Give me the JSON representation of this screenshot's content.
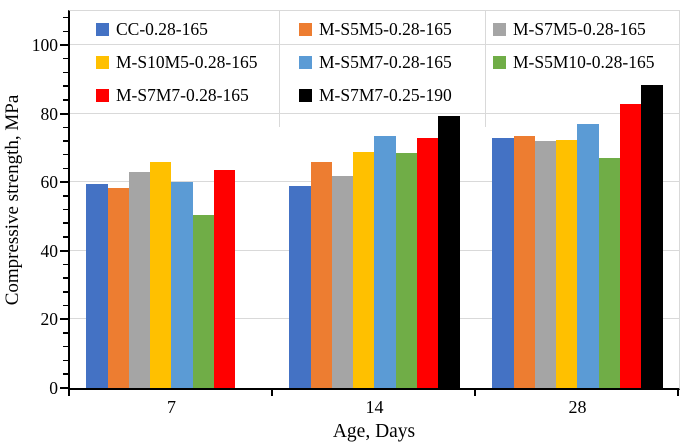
{
  "chart_data": {
    "type": "bar",
    "title": "",
    "xlabel": "Age, Days",
    "ylabel": "Compressive strength, MPa",
    "categories": [
      "7",
      "14",
      "28"
    ],
    "ylim": [
      0,
      110
    ],
    "ytick_major": 20,
    "ytick_minor": 4,
    "ytick_labels": [
      "0",
      "20",
      "40",
      "60",
      "80",
      "100"
    ],
    "grid": true,
    "legend_position": "inside-top-3-columns",
    "gridline_color": "#d9d9d9",
    "axis_color": "#000000",
    "series": [
      {
        "name": "CC-0.28-165",
        "color": "#4472C4",
        "values": [
          59.5,
          59,
          73
        ]
      },
      {
        "name": "M-S5M5-0.28-165",
        "color": "#ED7D31",
        "values": [
          58.5,
          66,
          73.5
        ]
      },
      {
        "name": "M-S7M5-0.28-165",
        "color": "#A5A5A5",
        "values": [
          63,
          62,
          72
        ]
      },
      {
        "name": "M-S10M5-0.28-165",
        "color": "#FFC000",
        "values": [
          66,
          69,
          72.5
        ]
      },
      {
        "name": "M-S5M7-0.28-165",
        "color": "#5B9BD5",
        "values": [
          60,
          73.5,
          77
        ]
      },
      {
        "name": "M-S5M10-0.28-165",
        "color": "#70AD47",
        "values": [
          50.5,
          68.5,
          67
        ]
      },
      {
        "name": "M-S7M7-0.28-165",
        "color": "#FF0000",
        "values": [
          63.5,
          73,
          83
        ]
      },
      {
        "name": "M-S7M7-0.25-190",
        "color": "#000000",
        "values": [
          null,
          79.5,
          88.5
        ]
      }
    ],
    "legend_columns": [
      [
        0,
        3,
        6
      ],
      [
        1,
        4,
        7
      ],
      [
        2,
        5
      ]
    ],
    "legend_column_padding": [
      26,
      20,
      8
    ]
  }
}
